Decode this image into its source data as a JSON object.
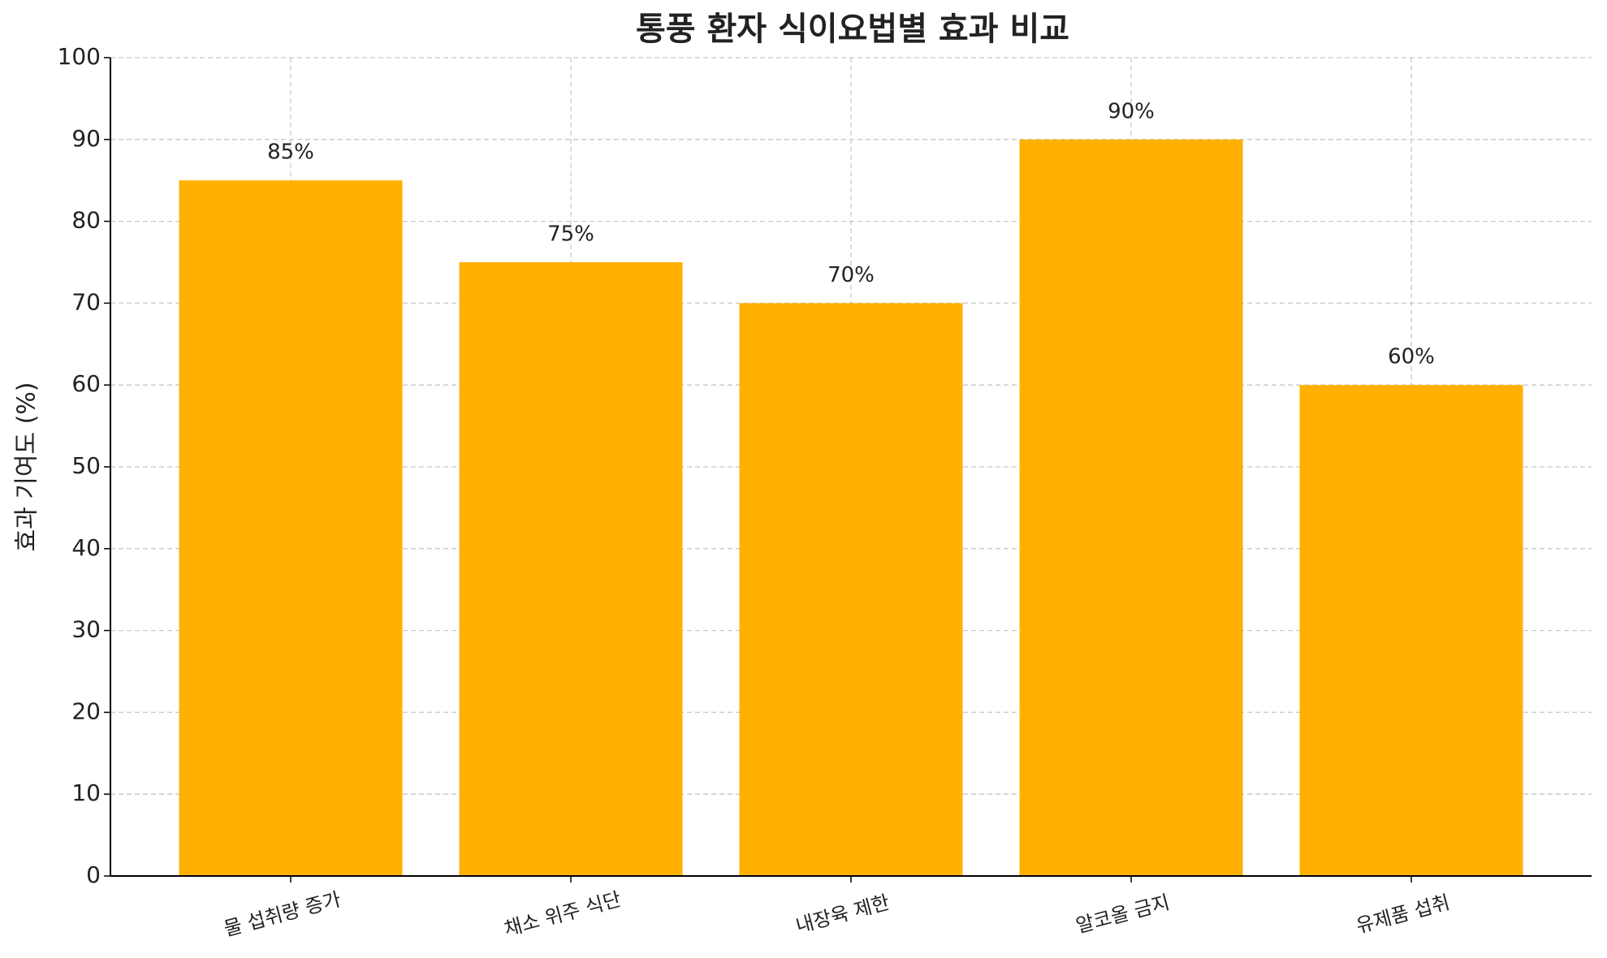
{
  "chart_data": {
    "type": "bar",
    "title": "통풍 환자 식이요법별 효과 비교",
    "y_label": "효과 기여도 (%)",
    "categories": [
      "물 섭취량 증가",
      "채소 위주 식단",
      "내장육 제한",
      "알코올 금지",
      "유제품 섭취"
    ],
    "values": [
      85,
      75,
      70,
      90,
      60
    ],
    "value_labels": [
      "85%",
      "75%",
      "70%",
      "90%",
      "60%"
    ],
    "color": "#ffb000",
    "ylim": [
      0,
      100
    ],
    "yticks": [
      0,
      10,
      20,
      30,
      40,
      50,
      60,
      70,
      80,
      90,
      100
    ],
    "grid": true
  }
}
